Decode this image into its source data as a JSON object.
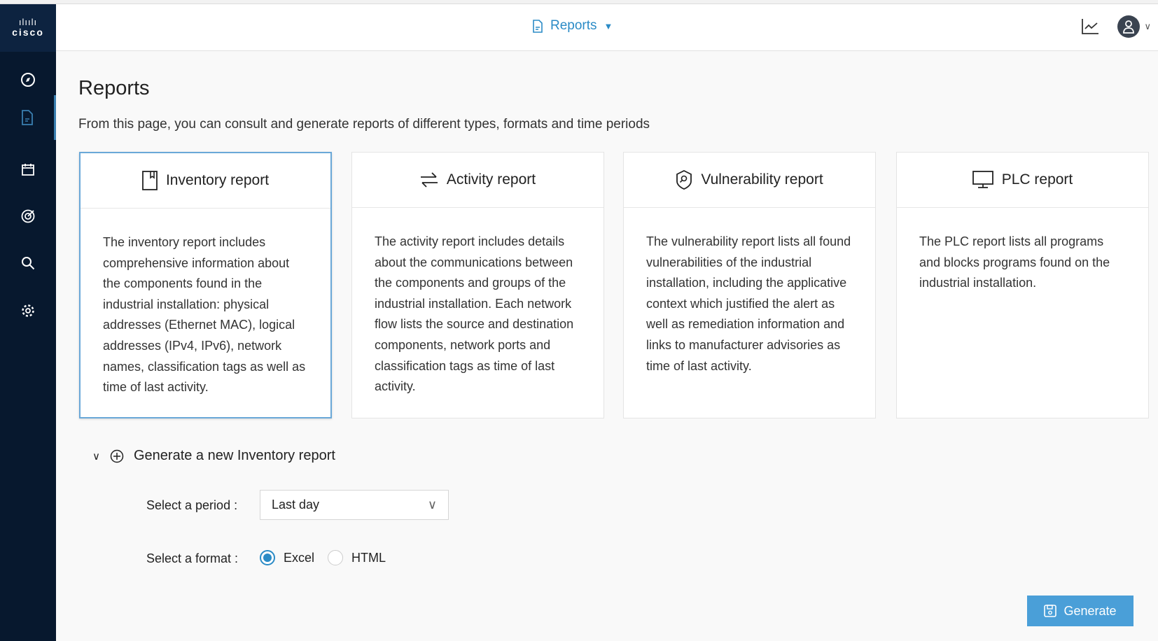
{
  "sidebar": {
    "logo": "cisco",
    "items": [
      {
        "icon": "compass-icon"
      },
      {
        "icon": "document-icon",
        "active": true
      },
      {
        "icon": "calendar-icon"
      },
      {
        "icon": "target-icon"
      },
      {
        "icon": "search-icon"
      },
      {
        "icon": "gear-icon"
      }
    ]
  },
  "header": {
    "menu_label": "Reports",
    "accent": "#2b8bc6"
  },
  "page": {
    "title": "Reports",
    "description": "From this page, you can consult and generate reports of different types, formats and time periods"
  },
  "cards": [
    {
      "title": "Inventory report",
      "icon": "bookmark-icon",
      "selected": true,
      "text": "The inventory report includes comprehensive information about the components found in the industrial installation: physical addresses (Ethernet MAC), logical addresses (IPv4, IPv6), network names, classification tags as well as time of last activity."
    },
    {
      "title": "Activity report",
      "icon": "arrows-icon",
      "text": "The activity report includes details about the communications between the components and groups of the industrial installation. Each network flow lists the source and destination components, network ports and classification tags as time of last activity."
    },
    {
      "title": "Vulnerability report",
      "icon": "shield-icon",
      "text": "The vulnerability report lists all found vulnerabilities of the industrial installation, including the applicative context which justified the alert as well as remediation information and links to manufacturer advisories as time of last activity."
    },
    {
      "title": "PLC report",
      "icon": "monitor-icon",
      "text": "The PLC report lists all programs and blocks programs found on the industrial installation."
    }
  ],
  "generate": {
    "heading": "Generate a new Inventory report",
    "period_label": "Select a period :",
    "period_value": "Last day",
    "format_label": "Select a format :",
    "formats": [
      {
        "label": "Excel",
        "checked": true
      },
      {
        "label": "HTML",
        "checked": false
      }
    ],
    "button": "Generate"
  }
}
